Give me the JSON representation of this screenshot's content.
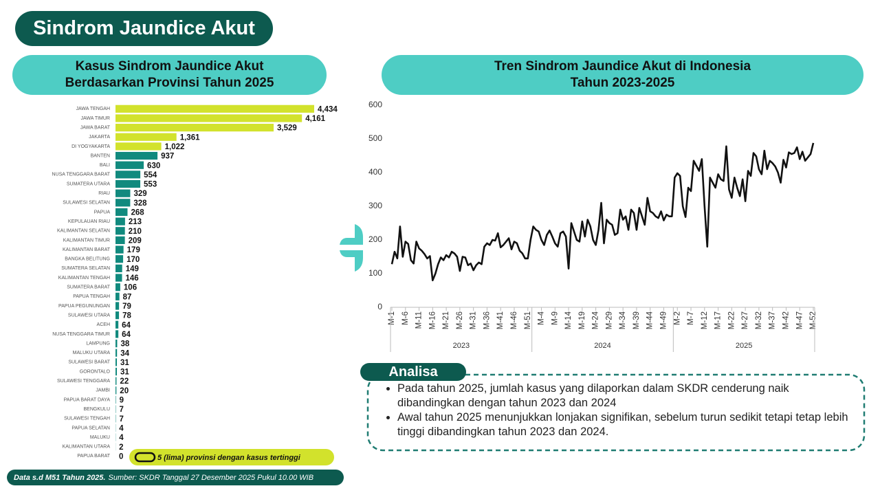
{
  "header": {
    "title": "Sindrom Jaundice Akut"
  },
  "chart_data": [
    {
      "type": "hbar",
      "title": [
        "Kasus Sindrom Jaundice Akut",
        "Berdasarkan Provinsi Tahun 2025"
      ],
      "categories": [
        "JAWA TENGAH",
        "JAWA TIMUR",
        "JAWA BARAT",
        "JAKARTA",
        "DI YOGYAKARTA",
        "BANTEN",
        "BALI",
        "NUSA TENGGARA BARAT",
        "SUMATERA UTARA",
        "RIAU",
        "SULAWESI SELATAN",
        "PAPUA",
        "KEPULAUAN RIAU",
        "KALIMANTAN SELATAN",
        "KALIMANTAN TIMUR",
        "KALIMANTAN BARAT",
        "BANGKA BELITUNG",
        "SUMATERA SELATAN",
        "KALIMANTAN TENGAH",
        "SUMATERA BARAT",
        "PAPUA TENGAH",
        "PAPUA PEGUNUNGAN",
        "SULAWESI UTARA",
        "ACEH",
        "NUSA TENGGARA TIMUR",
        "LAMPUNG",
        "MALUKU UTARA",
        "SULAWESI BARAT",
        "GORONTALO",
        "SULAWESI TENGGARA",
        "JAMBI",
        "PAPUA BARAT DAYA",
        "BENGKULU",
        "SULAWESI TENGAH",
        "PAPUA SELATAN",
        "MALUKU",
        "KALIMANTAN UTARA",
        "PAPUA BARAT"
      ],
      "values": [
        4434,
        4161,
        3529,
        1361,
        1022,
        937,
        630,
        554,
        553,
        329,
        328,
        268,
        213,
        210,
        209,
        179,
        170,
        149,
        146,
        106,
        87,
        79,
        78,
        64,
        64,
        38,
        34,
        31,
        31,
        22,
        20,
        9,
        7,
        7,
        4,
        4,
        2,
        0
      ],
      "value_labels": [
        "4,434",
        "4,161",
        "3,529",
        "1,361",
        "1,022",
        "937",
        "630",
        "554",
        "553",
        "329",
        "328",
        "268",
        "213",
        "210",
        "209",
        "179",
        "170",
        "149",
        "146",
        "106",
        "87",
        "79",
        "78",
        "64",
        "64",
        "38",
        "34",
        "31",
        "31",
        "22",
        "20",
        "9",
        "7",
        "7",
        "4",
        "4",
        "2",
        "0"
      ],
      "colors": [
        "#d2e22c",
        "#d2e22c",
        "#d2e22c",
        "#d2e22c",
        "#d2e22c",
        "#118a7e",
        "#118a7e",
        "#118a7e",
        "#118a7e",
        "#118a7e",
        "#118a7e",
        "#118a7e",
        "#118a7e",
        "#118a7e",
        "#118a7e",
        "#118a7e",
        "#118a7e",
        "#118a7e",
        "#118a7e",
        "#118a7e",
        "#118a7e",
        "#118a7e",
        "#118a7e",
        "#118a7e",
        "#118a7e",
        "#118a7e",
        "#118a7e",
        "#118a7e",
        "#118a7e",
        "#118a7e",
        "#118a7e",
        "#118a7e",
        "#118a7e",
        "#118a7e",
        "#118a7e",
        "#118a7e",
        "#118a7e",
        "#118a7e"
      ],
      "note": "5 (lima) provinsi dengan kasus tertinggi"
    },
    {
      "type": "line",
      "title": [
        "Tren Sindrom Jaundice Akut di Indonesia",
        "Tahun 2023-2025"
      ],
      "categories": [
        "M-1",
        null,
        null,
        null,
        null,
        "M-6",
        null,
        null,
        null,
        null,
        "M-11",
        null,
        null,
        null,
        null,
        "M-16",
        null,
        null,
        null,
        null,
        "M-21",
        null,
        null,
        null,
        null,
        "M-26",
        null,
        null,
        null,
        null,
        "M-31",
        null,
        null,
        null,
        null,
        "M-36",
        null,
        null,
        null,
        null,
        "M-41",
        null,
        null,
        null,
        null,
        "M-46",
        null,
        null,
        null,
        null,
        "M-51",
        null,
        null,
        null,
        null,
        "M-4",
        null,
        null,
        null,
        null,
        "M-9",
        null,
        null,
        null,
        null,
        "M-14",
        null,
        null,
        null,
        null,
        "M-19",
        null,
        null,
        null,
        null,
        "M-24",
        null,
        null,
        null,
        null,
        "M-29",
        null,
        null,
        null,
        null,
        "M-34",
        null,
        null,
        null,
        null,
        "M-39",
        null,
        null,
        null,
        null,
        "M-44",
        null,
        null,
        null,
        null,
        "M-49",
        null,
        null,
        null,
        null,
        "M-2",
        null,
        null,
        null,
        null,
        "M-7",
        null,
        null,
        null,
        null,
        "M-12",
        null,
        null,
        null,
        null,
        "M-17",
        null,
        null,
        null,
        null,
        "M-22",
        null,
        null,
        null,
        null,
        "M-27",
        null,
        null,
        null,
        null,
        "M-32",
        null,
        null,
        null,
        null,
        "M-37",
        null,
        null,
        null,
        null,
        "M-42",
        null,
        null,
        null,
        null,
        "M-47",
        null,
        null,
        null,
        null,
        "M-52"
      ],
      "groups": [
        "2023",
        "2024",
        "2025"
      ],
      "values": [
        128,
        165,
        145,
        240,
        150,
        195,
        188,
        140,
        130,
        195,
        175,
        168,
        158,
        145,
        152,
        80,
        100,
        128,
        148,
        140,
        155,
        148,
        165,
        160,
        150,
        108,
        150,
        148,
        125,
        130,
        110,
        125,
        133,
        128,
        180,
        190,
        185,
        200,
        198,
        220,
        178,
        185,
        195,
        205,
        172,
        195,
        190,
        168,
        160,
        145,
        145,
        200,
        240,
        230,
        225,
        200,
        185,
        215,
        228,
        210,
        190,
        180,
        220,
        225,
        210,
        115,
        250,
        225,
        200,
        195,
        255,
        210,
        260,
        240,
        200,
        185,
        230,
        310,
        190,
        260,
        250,
        245,
        215,
        220,
        290,
        260,
        270,
        230,
        290,
        280,
        230,
        295,
        270,
        245,
        325,
        285,
        280,
        270,
        265,
        285,
        258,
        275,
        270,
        270,
        385,
        398,
        390,
        300,
        268,
        355,
        345,
        435,
        420,
        405,
        440,
        300,
        180,
        385,
        370,
        355,
        395,
        380,
        375,
        478,
        350,
        325,
        385,
        355,
        330,
        380,
        315,
        405,
        390,
        458,
        448,
        410,
        395,
        465,
        410,
        435,
        428,
        418,
        400,
        370,
        438,
        415,
        460,
        455,
        458,
        475,
        440,
        462,
        435,
        445,
        455,
        488
      ],
      "color": "#111111",
      "ylim": [
        0,
        600
      ],
      "yticks": [
        0,
        100,
        200,
        300,
        400,
        500,
        600
      ],
      "grid": false
    }
  ],
  "analysis": {
    "title": "Analisa",
    "bullets": [
      "Pada tahun 2025, jumlah kasus yang dilaporkan dalam SKDR cenderung naik dibandingkan dengan tahun 2023 dan 2024",
      "Awal tahun 2025 menunjukkan lonjakan signifikan, sebelum turun sedikit tetapi tetap lebih tinggi dibandingkan tahun 2023 dan 2024."
    ]
  },
  "footer": {
    "bold": "Data s.d M51 Tahun 2025.",
    "text": "Sumber: SKDR Tanggal 27 Desember 2025 Pukul 10.00 WIB"
  }
}
